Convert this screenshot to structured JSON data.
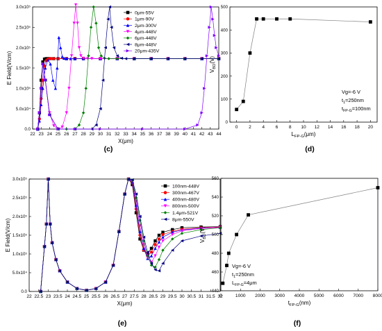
{
  "chart_data": [
    {
      "type": "line",
      "label": "(c)",
      "xlabel": "X(μm)",
      "ylabel": "E Field(V/cm)",
      "xlim": [
        22,
        44
      ],
      "ylim": [
        0,
        300000
      ],
      "xticks": [
        "22",
        "23",
        "24",
        "25",
        "26",
        "27",
        "28",
        "29",
        "30",
        "31",
        "32",
        "33",
        "34",
        "35",
        "36",
        "37",
        "38",
        "39",
        "40",
        "41",
        "42",
        "43",
        "44"
      ],
      "yticks": [
        "0.0",
        "5.0x10⁴",
        "1.0x10⁵",
        "1.5x10⁵",
        "2.0x10⁵",
        "2.5x10⁵",
        "3.0x10⁵"
      ],
      "legend_position": "top-right",
      "series": [
        {
          "name": "0μm-55V",
          "color": "#000000",
          "marker": "square",
          "x": [
            22.6,
            22.8,
            23.0,
            23.2,
            23.4,
            23.6,
            23.8,
            24.0,
            24.5,
            25,
            26,
            27,
            28,
            30,
            32,
            34,
            36,
            38,
            40,
            42,
            44
          ],
          "y": [
            0,
            40000,
            120000,
            165000,
            172000,
            173000,
            173000,
            173000,
            173000,
            173000,
            173000,
            173000,
            173000,
            173000,
            173000,
            173000,
            173000,
            173000,
            173000,
            173000,
            173000
          ]
        },
        {
          "name": "1μm-90V",
          "color": "#ff0000",
          "marker": "circle",
          "x": [
            22.6,
            22.8,
            23.0,
            23.2,
            23.4,
            23.6,
            23.8,
            24.0,
            24.2,
            24.5,
            25,
            26,
            27,
            28,
            30,
            32,
            34,
            36,
            38,
            40,
            42,
            44
          ],
          "y": [
            0,
            25000,
            75000,
            120000,
            155000,
            168000,
            172000,
            173000,
            173000,
            173000,
            173000,
            173000,
            173000,
            173000,
            173000,
            173000,
            173000,
            173000,
            173000,
            173000,
            173000,
            173000
          ]
        },
        {
          "name": "2μm-300V",
          "color": "#0000ff",
          "marker": "triangle-up",
          "x": [
            22.6,
            22.8,
            23.0,
            23.2,
            23.5,
            23.8,
            24.1,
            24.4,
            24.7,
            24.9,
            25.1,
            25.3,
            25.5,
            25.7,
            26.0,
            26.5,
            27,
            28,
            30,
            32,
            34,
            36,
            38,
            40,
            42,
            44
          ],
          "y": [
            0,
            20000,
            60000,
            100000,
            150000,
            170000,
            160000,
            120000,
            100000,
            150000,
            225000,
            200000,
            178000,
            174000,
            173000,
            173000,
            173000,
            173000,
            173000,
            173000,
            173000,
            173000,
            173000,
            173000,
            173000,
            173000
          ]
        },
        {
          "name": "4μm-448V",
          "color": "#ff00ff",
          "marker": "triangle-down",
          "x": [
            22.6,
            22.8,
            23.0,
            23.2,
            23.5,
            24.0,
            24.5,
            25.0,
            25.5,
            26.0,
            26.3,
            26.6,
            26.9,
            27.1,
            27.3,
            27.5,
            27.7,
            28.0,
            28.5,
            29,
            30,
            32,
            34,
            36,
            38,
            40,
            42,
            44
          ],
          "y": [
            0,
            40000,
            100000,
            160000,
            120000,
            40000,
            8000,
            0,
            5000,
            40000,
            100000,
            180000,
            260000,
            305000,
            260000,
            200000,
            180000,
            174000,
            173000,
            173000,
            173000,
            173000,
            173000,
            173000,
            173000,
            173000,
            173000,
            173000
          ]
        },
        {
          "name": "6μm-448V",
          "color": "#008000",
          "marker": "diamond",
          "x": [
            22.6,
            22.8,
            23.0,
            23.2,
            23.5,
            24,
            25,
            26,
            27,
            27.5,
            28.0,
            28.3,
            28.6,
            28.9,
            29.2,
            29.5,
            29.8,
            30.1,
            30.5,
            31,
            32,
            34,
            36,
            38,
            40,
            42,
            44
          ],
          "y": [
            0,
            40000,
            100000,
            160000,
            120000,
            35000,
            0,
            0,
            0,
            10000,
            40000,
            100000,
            180000,
            250000,
            300000,
            260000,
            200000,
            180000,
            174000,
            173000,
            173000,
            173000,
            173000,
            173000,
            173000,
            173000,
            173000
          ]
        },
        {
          "name": "8μm-448V",
          "color": "#000080",
          "marker": "triangle-left",
          "x": [
            22.6,
            22.8,
            23.0,
            23.2,
            23.5,
            24,
            25,
            27,
            29,
            29.5,
            30.0,
            30.3,
            30.6,
            30.9,
            31.1,
            31.3,
            31.6,
            32.0,
            32.5,
            33,
            34,
            36,
            38,
            40,
            42,
            44
          ],
          "y": [
            0,
            40000,
            100000,
            160000,
            120000,
            35000,
            0,
            0,
            0,
            10000,
            50000,
            120000,
            200000,
            270000,
            300000,
            250000,
            200000,
            180000,
            174000,
            173000,
            173000,
            173000,
            173000,
            173000,
            173000,
            173000
          ]
        },
        {
          "name": "20μm-435V",
          "color": "#8000ff",
          "marker": "triangle-right",
          "x": [
            22.6,
            22.8,
            23.0,
            23.2,
            23.5,
            24,
            25,
            27,
            30,
            35,
            40,
            41.5,
            42.0,
            42.3,
            42.6,
            42.9,
            43.1,
            43.3,
            43.5,
            43.7,
            44
          ],
          "y": [
            0,
            40000,
            100000,
            160000,
            120000,
            35000,
            0,
            0,
            0,
            0,
            0,
            10000,
            40000,
            100000,
            180000,
            250000,
            300000,
            270000,
            230000,
            200000,
            180000
          ]
        }
      ]
    },
    {
      "type": "line",
      "label": "(d)",
      "xlabel": "L_FP-G(μm)",
      "ylabel": "V_BD(V)",
      "xlim": [
        -1,
        21
      ],
      "ylim": [
        0,
        500
      ],
      "xticks": [
        "0",
        "2",
        "4",
        "6",
        "8",
        "10",
        "12",
        "14",
        "16",
        "18",
        "20"
      ],
      "yticks": [
        "0",
        "100",
        "200",
        "300",
        "400",
        "500"
      ],
      "annotations": [
        "Vg=-6 V",
        "t_1=250nm",
        "t_FP-G=100nm"
      ],
      "series": [
        {
          "name": "",
          "color": "#000000",
          "marker": "square",
          "x": [
            0,
            1,
            2,
            3,
            4,
            6,
            8,
            20
          ],
          "y": [
            55,
            90,
            300,
            448,
            448,
            448,
            448,
            435
          ]
        }
      ]
    },
    {
      "type": "line",
      "label": "(e)",
      "xlabel": "X(μm)",
      "ylabel": "E Field(V/cm)",
      "xlim": [
        22,
        32
      ],
      "ylim": [
        0,
        300000
      ],
      "xticks": [
        "22",
        "22.5",
        "23",
        "23.5",
        "24",
        "24.5",
        "25",
        "25.5",
        "26",
        "26.5",
        "27",
        "27.5",
        "28",
        "28.5",
        "29",
        "29.5",
        "30",
        "30.5",
        "31",
        "31.5",
        "32"
      ],
      "yticks": [
        "0.0",
        "5.0x10⁴",
        "1.0x10⁵",
        "1.5x10⁵",
        "2.0x10⁵",
        "2.5x10⁵",
        "3.0x10⁵"
      ],
      "legend_position": "top-right",
      "series": [
        {
          "name": "100nm-448V",
          "color": "#000000",
          "marker": "square",
          "x": [
            22.6,
            22.8,
            22.9,
            23.0,
            23.1,
            23.2,
            23.4,
            23.6,
            24.0,
            24.5,
            25.0,
            25.5,
            26.0,
            26.4,
            26.7,
            27.0,
            27.2,
            27.4,
            27.6,
            27.8,
            28.0,
            28.2,
            28.4,
            28.6,
            28.8,
            29.0,
            29.5,
            30,
            31,
            32
          ],
          "y": [
            0,
            120000,
            180000,
            300000,
            180000,
            130000,
            85000,
            55000,
            25000,
            8000,
            3000,
            8000,
            25000,
            70000,
            160000,
            260000,
            300000,
            285000,
            210000,
            140000,
            110000,
            100000,
            115000,
            135000,
            150000,
            158000,
            165000,
            170000,
            172000,
            173000
          ]
        },
        {
          "name": "300nm-467V",
          "color": "#ff0000",
          "marker": "circle",
          "x": [
            22.6,
            22.8,
            22.9,
            23.0,
            23.1,
            23.2,
            23.4,
            23.6,
            24.0,
            24.5,
            25.0,
            25.5,
            26.0,
            26.4,
            26.7,
            27.0,
            27.2,
            27.4,
            27.6,
            27.8,
            28.0,
            28.2,
            28.4,
            28.6,
            28.8,
            29.0,
            29.5,
            30,
            31,
            32
          ],
          "y": [
            0,
            120000,
            180000,
            300000,
            180000,
            130000,
            85000,
            55000,
            25000,
            8000,
            3000,
            8000,
            25000,
            70000,
            160000,
            260000,
            300000,
            290000,
            220000,
            150000,
            110000,
            95000,
            105000,
            125000,
            140000,
            152000,
            160000,
            166000,
            170000,
            172000
          ]
        },
        {
          "name": "400nm-480V",
          "color": "#0000ff",
          "marker": "triangle-up",
          "x": [
            22.6,
            22.8,
            22.9,
            23.0,
            23.1,
            23.2,
            23.4,
            23.6,
            24.0,
            24.5,
            25.0,
            25.5,
            26.0,
            26.4,
            26.7,
            27.0,
            27.2,
            27.4,
            27.6,
            27.8,
            28.0,
            28.2,
            28.4,
            28.6,
            28.8,
            29.0,
            29.5,
            30,
            31,
            32
          ],
          "y": [
            0,
            120000,
            180000,
            300000,
            180000,
            130000,
            85000,
            55000,
            25000,
            8000,
            3000,
            8000,
            25000,
            70000,
            160000,
            260000,
            300000,
            292000,
            230000,
            160000,
            115000,
            88000,
            95000,
            115000,
            132000,
            145000,
            158000,
            164000,
            169000,
            171000
          ]
        },
        {
          "name": "800nm-500V",
          "color": "#ff00ff",
          "marker": "triangle-down",
          "x": [
            22.6,
            22.8,
            22.9,
            23.0,
            23.1,
            23.2,
            23.4,
            23.6,
            24.0,
            24.5,
            25.0,
            25.5,
            26.0,
            26.4,
            26.7,
            27.0,
            27.2,
            27.4,
            27.6,
            27.8,
            28.0,
            28.2,
            28.4,
            28.6,
            28.8,
            29.0,
            29.5,
            30,
            31,
            32
          ],
          "y": [
            0,
            120000,
            180000,
            300000,
            180000,
            130000,
            85000,
            55000,
            25000,
            8000,
            3000,
            8000,
            25000,
            70000,
            160000,
            260000,
            300000,
            295000,
            240000,
            175000,
            125000,
            90000,
            78000,
            95000,
            118000,
            135000,
            152000,
            162000,
            168000,
            171000
          ]
        },
        {
          "name": "1.4μm-521V",
          "color": "#008000",
          "marker": "diamond",
          "x": [
            22.6,
            22.8,
            22.9,
            23.0,
            23.1,
            23.2,
            23.4,
            23.6,
            24.0,
            24.5,
            25.0,
            25.5,
            26.0,
            26.4,
            26.7,
            27.0,
            27.2,
            27.4,
            27.6,
            27.8,
            28.0,
            28.2,
            28.4,
            28.6,
            28.8,
            29.0,
            29.5,
            30,
            31,
            32
          ],
          "y": [
            0,
            120000,
            180000,
            300000,
            180000,
            130000,
            85000,
            55000,
            25000,
            8000,
            3000,
            8000,
            25000,
            70000,
            160000,
            260000,
            300000,
            297000,
            250000,
            190000,
            135000,
            95000,
            70000,
            65000,
            85000,
            110000,
            140000,
            155000,
            165000,
            170000
          ]
        },
        {
          "name": "8μm-550V",
          "color": "#000080",
          "marker": "triangle-left",
          "x": [
            22.6,
            22.8,
            22.9,
            23.0,
            23.1,
            23.2,
            23.4,
            23.6,
            24.0,
            24.5,
            25.0,
            25.5,
            26.0,
            26.4,
            26.7,
            27.0,
            27.2,
            27.4,
            27.6,
            27.8,
            28.0,
            28.2,
            28.4,
            28.6,
            28.8,
            29.0,
            29.5,
            30,
            31,
            32
          ],
          "y": [
            0,
            120000,
            180000,
            300000,
            180000,
            130000,
            85000,
            55000,
            25000,
            8000,
            3000,
            8000,
            25000,
            70000,
            160000,
            260000,
            300000,
            298000,
            260000,
            200000,
            145000,
            105000,
            75000,
            58000,
            55000,
            75000,
            110000,
            135000,
            148000,
            155000
          ]
        }
      ]
    },
    {
      "type": "line",
      "label": "(f)",
      "xlabel": "t_FP-G(nm)",
      "ylabel": "V_BD(V)",
      "xlim": [
        0,
        8000
      ],
      "ylim": [
        440,
        560
      ],
      "xticks": [
        "0",
        "1000",
        "2000",
        "3000",
        "4000",
        "5000",
        "6000",
        "7000",
        "8000"
      ],
      "yticks": [
        "440",
        "460",
        "480",
        "500",
        "520",
        "540",
        "560"
      ],
      "annotations": [
        "Vg=-6 V",
        "t_1=250nm",
        "L_FP-G=4μm"
      ],
      "series": [
        {
          "name": "",
          "color": "#000000",
          "marker": "square",
          "x": [
            100,
            300,
            400,
            800,
            1400,
            8000
          ],
          "y": [
            448,
            467,
            480,
            500,
            521,
            550
          ]
        }
      ]
    }
  ]
}
